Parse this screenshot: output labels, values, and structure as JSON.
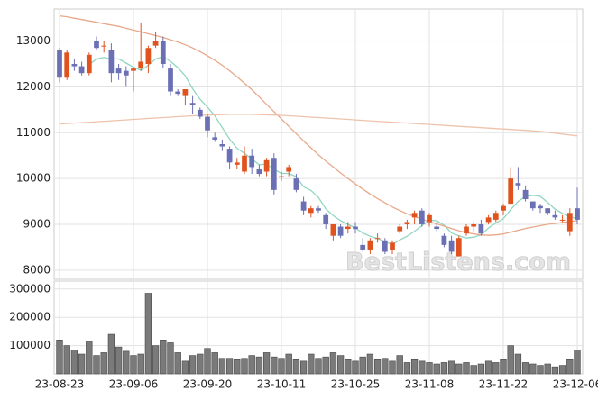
{
  "chart_data": {
    "type": "candlestick",
    "grid": true,
    "up_color": "#e0531f",
    "down_color": "#6b70b5",
    "watermark": "BestListens.com",
    "categories": [
      "23-08-23",
      null,
      null,
      null,
      null,
      null,
      null,
      null,
      null,
      null,
      "23-09-06",
      null,
      null,
      null,
      null,
      null,
      null,
      null,
      null,
      null,
      "23-09-20",
      null,
      null,
      null,
      null,
      null,
      null,
      null,
      null,
      null,
      "23-10-11",
      null,
      null,
      null,
      null,
      null,
      null,
      null,
      null,
      null,
      "23-10-25",
      null,
      null,
      null,
      null,
      null,
      null,
      null,
      null,
      null,
      "23-11-08",
      null,
      null,
      null,
      null,
      null,
      null,
      null,
      null,
      null,
      "23-11-22",
      null,
      null,
      null,
      null,
      null,
      null,
      null,
      null,
      null,
      "23-12-06"
    ],
    "open": [
      12800,
      12200,
      12500,
      12450,
      12300,
      13000,
      12900,
      12800,
      12400,
      12350,
      12350,
      12400,
      12500,
      12900,
      13000,
      12400,
      11900,
      11800,
      11650,
      11500,
      11350,
      10900,
      10750,
      10650,
      10300,
      10150,
      10500,
      10200,
      10150,
      10450,
      10050,
      10150,
      10000,
      9500,
      9250,
      9350,
      9200,
      8750,
      8950,
      8900,
      8950,
      8550,
      8450,
      8700,
      8650,
      8450,
      8850,
      9000,
      9150,
      9300,
      9050,
      8950,
      8750,
      8650,
      8300,
      8800,
      8950,
      9000,
      9050,
      9100,
      9300,
      9450,
      9900,
      9750,
      9500,
      9400,
      9350,
      9200,
      9100,
      8850,
      9350
    ],
    "high": [
      12850,
      12800,
      12600,
      12550,
      12750,
      13100,
      13000,
      12950,
      12500,
      12450,
      12400,
      13400,
      12900,
      13200,
      13100,
      12500,
      11950,
      11900,
      11800,
      11550,
      11400,
      11000,
      10850,
      10700,
      10450,
      10700,
      10650,
      10300,
      10450,
      10550,
      10150,
      10300,
      10100,
      9600,
      9400,
      9400,
      9250,
      9000,
      9000,
      9050,
      9050,
      8700,
      8700,
      8800,
      8700,
      8650,
      9000,
      9100,
      9300,
      9350,
      9250,
      9050,
      8800,
      8750,
      8750,
      9000,
      9050,
      9100,
      9200,
      9300,
      9450,
      10250,
      10250,
      9850,
      9500,
      9450,
      9350,
      9300,
      9200,
      9350,
      9800
    ],
    "low": [
      12100,
      12150,
      12350,
      12250,
      12250,
      12800,
      12750,
      12100,
      12150,
      12000,
      11900,
      12350,
      12300,
      12850,
      12400,
      11800,
      11800,
      11600,
      11400,
      11300,
      10900,
      10800,
      10600,
      10200,
      10200,
      10100,
      10100,
      10050,
      10050,
      9650,
      9950,
      10050,
      9700,
      9200,
      9150,
      9250,
      8900,
      8650,
      8700,
      8800,
      8800,
      8400,
      8350,
      8600,
      8350,
      8350,
      8800,
      8900,
      9000,
      8950,
      8950,
      8850,
      8500,
      8350,
      8300,
      8750,
      8850,
      8750,
      9000,
      9050,
      9200,
      9450,
      9750,
      9500,
      9300,
      9250,
      9200,
      9100,
      9050,
      8750,
      9000
    ],
    "close": [
      12200,
      12750,
      12450,
      12300,
      12700,
      12850,
      12900,
      12300,
      12300,
      12250,
      12400,
      12550,
      12850,
      13000,
      12500,
      11900,
      11850,
      11950,
      11600,
      11350,
      11050,
      10850,
      10700,
      10350,
      10350,
      10500,
      10250,
      10100,
      10400,
      9750,
      10050,
      10250,
      9750,
      9300,
      9350,
      9300,
      9000,
      9000,
      8750,
      8950,
      8900,
      8450,
      8650,
      8700,
      8400,
      8600,
      8950,
      9050,
      9250,
      9000,
      9200,
      8900,
      8550,
      8400,
      8700,
      8950,
      9000,
      8800,
      9150,
      9250,
      9400,
      10000,
      9850,
      9550,
      9350,
      9350,
      9250,
      9150,
      9100,
      9250,
      9100
    ],
    "ylim": [
      7800,
      13700
    ],
    "yticks": [
      8000,
      9000,
      10000,
      11000,
      12000,
      13000
    ],
    "lines": [
      {
        "color": "#8fd6c0",
        "values": [
          null,
          null,
          null,
          null,
          12480,
          12610,
          12640,
          12610,
          12610,
          12520,
          12430,
          12360,
          12470,
          12610,
          12660,
          12560,
          12420,
          12240,
          11960,
          11730,
          11560,
          11370,
          11110,
          10860,
          10660,
          10550,
          10430,
          10300,
          10320,
          10200,
          10110,
          10110,
          10040,
          9820,
          9740,
          9590,
          9340,
          9190,
          9080,
          9000,
          8920,
          8810,
          8740,
          8690,
          8620,
          8560,
          8660,
          8740,
          8850,
          8970,
          9090,
          9080,
          8980,
          8810,
          8750,
          8700,
          8720,
          8770,
          8920,
          9030,
          9120,
          9320,
          9500,
          9610,
          9630,
          9610,
          9480,
          9330,
          9240,
          9160,
          9130
        ]
      },
      {
        "color": "#e8a88a",
        "values": [
          13550,
          13530,
          13500,
          13470,
          13440,
          13410,
          13380,
          13350,
          13320,
          13280,
          13240,
          13200,
          13160,
          13120,
          13080,
          13030,
          12980,
          12920,
          12850,
          12770,
          12680,
          12580,
          12470,
          12350,
          12220,
          12080,
          11940,
          11780,
          11620,
          11460,
          11300,
          11140,
          10980,
          10820,
          10670,
          10520,
          10380,
          10250,
          10120,
          10000,
          9880,
          9770,
          9660,
          9560,
          9470,
          9380,
          9300,
          9230,
          9170,
          9110,
          9060,
          9010,
          8960,
          8910,
          8860,
          8820,
          8790,
          8770,
          8760,
          8770,
          8790,
          8830,
          8870,
          8910,
          8940,
          8970,
          9000,
          9020,
          9040,
          9060,
          9080
        ]
      },
      {
        "color": "#eec3ac",
        "values": [
          11190,
          11200,
          11210,
          11220,
          11230,
          11240,
          11250,
          11260,
          11270,
          11280,
          11290,
          11300,
          11310,
          11320,
          11330,
          11340,
          11350,
          11360,
          11370,
          11380,
          11385,
          11390,
          11395,
          11400,
          11400,
          11400,
          11400,
          11395,
          11390,
          11385,
          11380,
          11370,
          11360,
          11350,
          11340,
          11330,
          11320,
          11310,
          11300,
          11290,
          11280,
          11270,
          11260,
          11250,
          11240,
          11230,
          11220,
          11210,
          11200,
          11190,
          11180,
          11170,
          11160,
          11150,
          11140,
          11130,
          11120,
          11110,
          11100,
          11090,
          11080,
          11070,
          11060,
          11050,
          11040,
          11030,
          11010,
          10990,
          10970,
          10950,
          10930
        ]
      }
    ],
    "volume": {
      "color": "#7a7a7a",
      "ylim": [
        0,
        328000
      ],
      "yticks": [
        100000,
        200000,
        300000
      ],
      "values": [
        120000,
        100000,
        85000,
        70000,
        115000,
        65000,
        75000,
        140000,
        95000,
        80000,
        65000,
        70000,
        285000,
        100000,
        120000,
        110000,
        75000,
        45000,
        65000,
        70000,
        90000,
        75000,
        55000,
        55000,
        50000,
        55000,
        65000,
        60000,
        75000,
        60000,
        55000,
        70000,
        50000,
        45000,
        70000,
        55000,
        60000,
        75000,
        65000,
        50000,
        45000,
        60000,
        70000,
        50000,
        55000,
        45000,
        65000,
        40000,
        50000,
        45000,
        40000,
        35000,
        40000,
        45000,
        35000,
        40000,
        30000,
        35000,
        45000,
        40000,
        50000,
        100000,
        70000,
        40000,
        35000,
        30000,
        35000,
        25000,
        30000,
        50000,
        85000
      ]
    }
  }
}
